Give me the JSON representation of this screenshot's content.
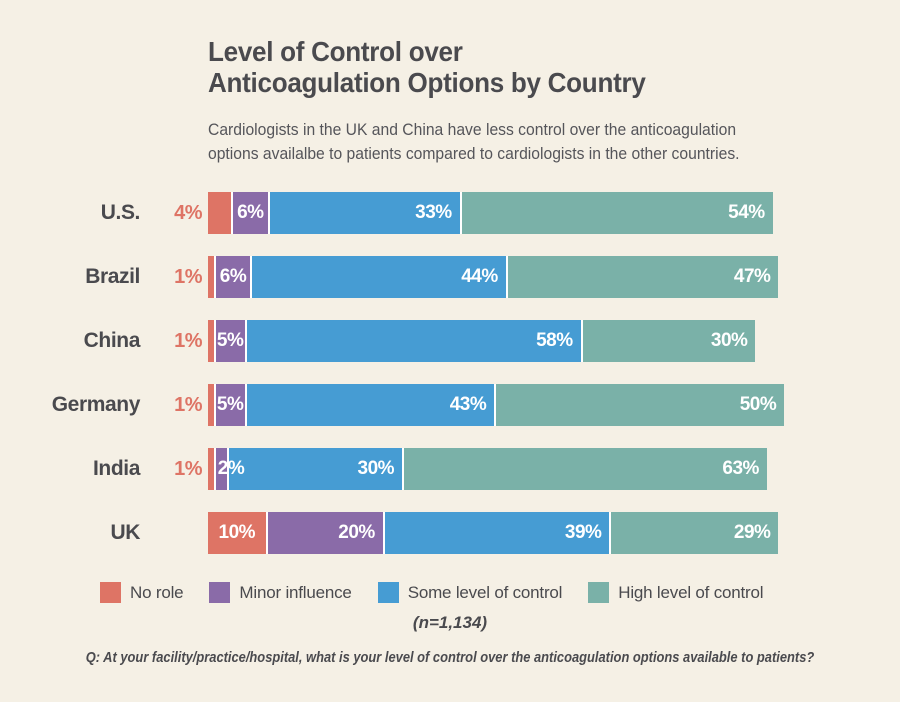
{
  "page": {
    "background_color": "#F5F0E5",
    "text_color": "#4A4A4E"
  },
  "header": {
    "title_line1": "Level of Control over",
    "title_line2": "Anticoagulation Options by Country",
    "subtitle_line1": "Cardiologists in the UK and China have less control over the anticoagulation",
    "subtitle_line2": "options availalbe to patients compared to cardiologists in the other countries."
  },
  "chart_data": {
    "type": "bar",
    "orientation": "horizontal",
    "stacked": true,
    "unit": "%",
    "grid": false,
    "xlim": [
      0,
      100
    ],
    "legend_position": "bottom",
    "categories": [
      "U.S.",
      "Brazil",
      "China",
      "Germany",
      "India",
      "UK"
    ],
    "series": [
      {
        "key": "no-role",
        "name": "No role",
        "color": "#DE7465",
        "values": [
          4,
          1,
          1,
          1,
          1,
          10
        ]
      },
      {
        "key": "minor-influence",
        "name": "Minor influence",
        "color": "#8A6BA8",
        "values": [
          6,
          6,
          5,
          5,
          2,
          20
        ]
      },
      {
        "key": "some-level-of-control",
        "name": "Some level of control",
        "color": "#469CD3",
        "values": [
          33,
          44,
          58,
          43,
          30,
          39
        ]
      },
      {
        "key": "high-level-of-control",
        "name": "High level of control",
        "color": "#7AB1A8",
        "values": [
          54,
          47,
          30,
          50,
          63,
          29
        ]
      }
    ],
    "sample_label": "(n=1,134)"
  },
  "footer": {
    "question": "Q: At your facility/practice/hospital, what is your level of control over the anticoagulation options available to patients?"
  }
}
